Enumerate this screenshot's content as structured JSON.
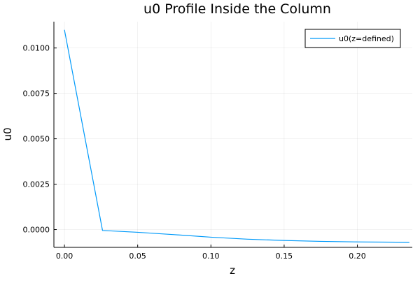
{
  "chart_data": {
    "type": "line",
    "title": "u0 Profile Inside the Column",
    "xlabel": "z",
    "ylabel": "u0",
    "xlim": [
      -0.0072,
      0.2375
    ],
    "ylim": [
      -0.00098,
      0.01145
    ],
    "x_ticks": [
      {
        "value": 0.0,
        "label": "0.00"
      },
      {
        "value": 0.05,
        "label": "0.05"
      },
      {
        "value": 0.1,
        "label": "0.10"
      },
      {
        "value": 0.15,
        "label": "0.15"
      },
      {
        "value": 0.2,
        "label": "0.20"
      }
    ],
    "y_ticks": [
      {
        "value": 0.0,
        "label": "0.0000"
      },
      {
        "value": 0.0025,
        "label": "0.0025"
      },
      {
        "value": 0.005,
        "label": "0.0050"
      },
      {
        "value": 0.0075,
        "label": "0.0075"
      },
      {
        "value": 0.01,
        "label": "0.0100"
      }
    ],
    "grid": true,
    "legend_position": "top-right",
    "series": [
      {
        "name": "u0(z=defined)",
        "color": "#009AFA",
        "x": [
          0.0,
          0.026,
          0.05,
          0.075,
          0.1,
          0.125,
          0.15,
          0.175,
          0.2,
          0.2355
        ],
        "y": [
          0.011,
          -5e-05,
          -0.00015,
          -0.00028,
          -0.00042,
          -0.00053,
          -0.0006,
          -0.00065,
          -0.00068,
          -0.0007
        ]
      }
    ]
  }
}
